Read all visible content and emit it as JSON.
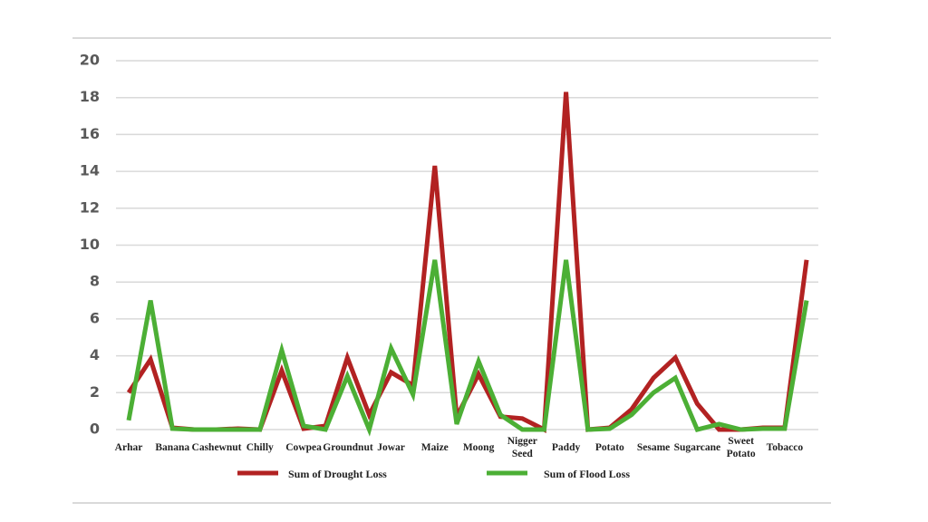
{
  "chart_data": {
    "type": "line",
    "categories": [
      "Arhar",
      null,
      "Banana",
      null,
      "Cashewnut",
      null,
      "Chilly",
      null,
      "Cowpea",
      null,
      "Groundnut",
      null,
      "Jowar",
      null,
      "Maize",
      null,
      "Moong",
      null,
      "Nigger Seed",
      null,
      "Paddy",
      null,
      "Potato",
      null,
      "Sesame",
      null,
      "Sugarcane",
      null,
      "Sweet Potato",
      null,
      "Tobacco",
      null
    ],
    "series": [
      {
        "name": "Sum of Drought Loss",
        "color": "#b22222",
        "values": [
          2.0,
          3.8,
          0.1,
          0,
          0,
          0.05,
          0,
          3.2,
          0.05,
          0.2,
          3.9,
          0.8,
          3.1,
          2.4,
          14.3,
          0.7,
          3.0,
          0.7,
          0.6,
          0,
          18.3,
          0,
          0.1,
          1.1,
          2.8,
          3.9,
          1.4,
          0,
          0,
          0.1,
          0.1,
          9.2
        ]
      },
      {
        "name": "Sum of Flood Loss",
        "color": "#4caf35",
        "values": [
          0.5,
          7.0,
          0.05,
          0,
          0,
          0,
          0,
          4.3,
          0.2,
          0,
          2.9,
          0,
          4.4,
          1.9,
          9.2,
          0.3,
          3.7,
          0.8,
          0,
          0,
          9.2,
          0,
          0.05,
          0.8,
          2.0,
          2.8,
          0,
          0.3,
          0,
          0.05,
          0.05,
          7.0
        ]
      }
    ],
    "ylim": [
      0,
      20
    ],
    "yticks": [
      0,
      2,
      4,
      6,
      8,
      10,
      12,
      14,
      16,
      18,
      20
    ],
    "grid": true
  }
}
